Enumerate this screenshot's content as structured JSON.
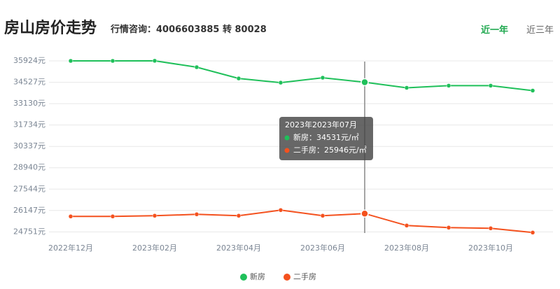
{
  "header": {
    "title": "房山房价走势",
    "hotline": "行情咨询：4006603885 转 80028",
    "tabs": [
      "近一年",
      "近三年"
    ]
  },
  "chart_data": {
    "type": "line",
    "categories": [
      "2022年12月",
      null,
      "2023年02月",
      null,
      "2023年04月",
      null,
      "2023年06月",
      null,
      "2023年08月",
      null,
      "2023年10月",
      null
    ],
    "series": [
      {
        "name": "新房",
        "color": "#1fc05a",
        "values": [
          35924,
          35924,
          35930,
          35512,
          34779,
          34503,
          34825,
          34531,
          34167,
          34305,
          34305,
          33984
        ]
      },
      {
        "name": "二手房",
        "color": "#f4511e",
        "values": [
          25759,
          25759,
          25805,
          25897,
          25805,
          26171,
          25805,
          25946,
          25164,
          25027,
          24981,
          24705
        ]
      }
    ],
    "ylim": [
      24400,
      36200
    ],
    "yticks": [
      {
        "value": 35924,
        "label": "35924元"
      },
      {
        "value": 34527,
        "label": "34527元"
      },
      {
        "value": 33130,
        "label": "33130元"
      },
      {
        "value": 31734,
        "label": "31734元"
      },
      {
        "value": 30337,
        "label": "30337元"
      },
      {
        "value": 28940,
        "label": "28940元"
      },
      {
        "value": 27544,
        "label": "27544元"
      },
      {
        "value": 26147,
        "label": "26147元"
      },
      {
        "value": 24751,
        "label": "24751元"
      }
    ],
    "grid": true,
    "highlight_index": 7,
    "tooltip": {
      "title": "2023年2023年07月",
      "lines": [
        "新房：34531元/㎡",
        "二手房：25946元/㎡"
      ]
    },
    "legend": "bottom"
  }
}
